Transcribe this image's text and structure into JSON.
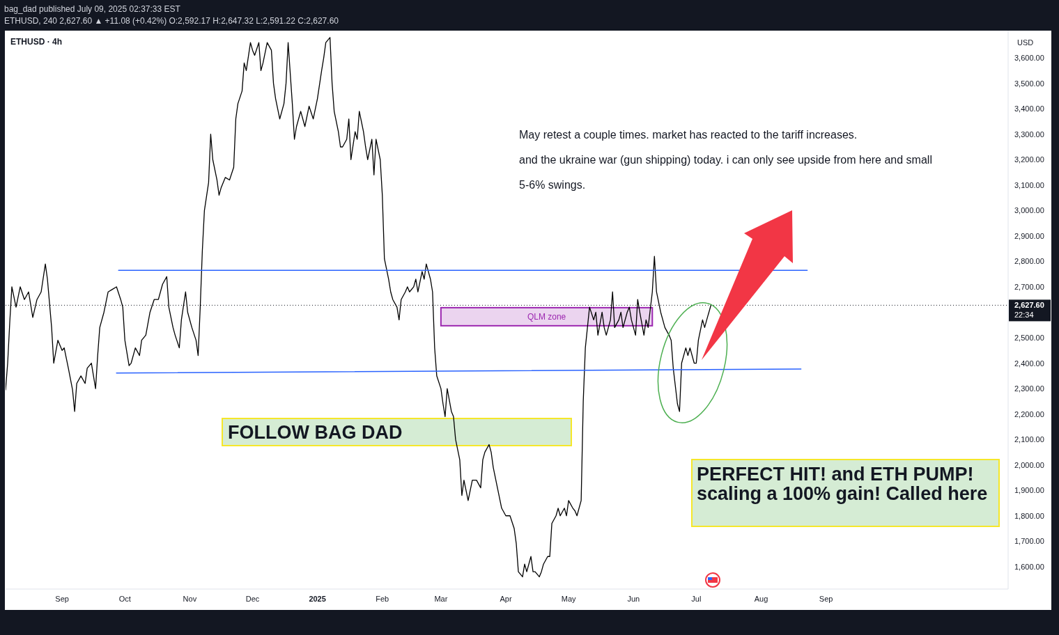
{
  "chart_data": {
    "type": "line",
    "title": "ETHUSD · 4h",
    "ylabel": "USD",
    "annotations": [
      "bag_dad published July 09, 2025 02:37:33 EST",
      "ETHUSD, 240  2,627.60 ▲ +11.08 (+0.42%)  O:2,592.17  H:2,647.32  L:2,591.22  C:2,627.60",
      "May retest a couple times. market has reacted to the tariff increases.",
      "and the ukraine war (gun shipping) today. i can only see upside from here and small",
      "5-6% swings.",
      "FOLLOW BAG DAD",
      "PERFECT HIT! and ETH PUMP!",
      "scaling a 100% gain! Called here",
      "22:34"
    ],
    "xlim": [
      "2024-08-05",
      "2025-11-27"
    ],
    "xticks": [
      {
        "value": "2024-09-01",
        "label": "Sep"
      },
      {
        "value": "2024-10-01",
        "label": "Oct"
      },
      {
        "value": "2024-11-01",
        "label": "Nov"
      },
      {
        "value": "2024-12-01",
        "label": "Dec"
      },
      {
        "value": "2025-01-01",
        "label": "2025"
      },
      {
        "value": "2025-02-01",
        "label": "Feb"
      },
      {
        "value": "2025-03-01",
        "label": "Mar"
      },
      {
        "value": "2025-04-01",
        "label": "Apr"
      },
      {
        "value": "2025-05-01",
        "label": "May"
      },
      {
        "value": "2025-06-01",
        "label": "Jun"
      },
      {
        "value": "2025-07-01",
        "label": "Jul"
      },
      {
        "value": "2025-08-01",
        "label": "Aug"
      },
      {
        "value": "2025-09-01",
        "label": "Sep"
      }
    ],
    "ylim": [
      1512,
      3707
    ],
    "yticks": [
      {
        "value": 1600,
        "label": "1,600.00"
      },
      {
        "value": 1700,
        "label": "1,700.00"
      },
      {
        "value": 1800,
        "label": "1,800.00"
      },
      {
        "value": 1900,
        "label": "1,900.00"
      },
      {
        "value": 2000,
        "label": "2,000.00"
      },
      {
        "value": 2100,
        "label": "2,100.00"
      },
      {
        "value": 2200,
        "label": "2,200.00"
      },
      {
        "value": 2300,
        "label": "2,300.00"
      },
      {
        "value": 2400,
        "label": "2,400.00"
      },
      {
        "value": 2500,
        "label": "2,500.00"
      },
      {
        "value": 2700,
        "label": "2,700.00"
      },
      {
        "value": 2800,
        "label": "2,800.00"
      },
      {
        "value": 2900,
        "label": "2,900.00"
      },
      {
        "value": 3000,
        "label": "3,000.00"
      },
      {
        "value": 3100,
        "label": "3,100.00"
      },
      {
        "value": 3200,
        "label": "3,200.00"
      },
      {
        "value": 3300,
        "label": "3,300.00"
      },
      {
        "value": 3400,
        "label": "3,400.00"
      },
      {
        "value": 3500,
        "label": "3,500.00"
      },
      {
        "value": 3600,
        "label": "3,600.00"
      }
    ],
    "grid": false,
    "marker": "none",
    "line_style": "solid",
    "ref_lines": [
      {
        "axis": "y",
        "value": 2627.6,
        "label": "2,627.60",
        "color": "#131722",
        "line_style": "dotted"
      }
    ],
    "bands": [
      {
        "axis": "y",
        "from": 2547,
        "to": 2618,
        "label": "QLM zone",
        "color": "#9c27b0"
      }
    ],
    "series": [
      {
        "color": "#000000",
        "x": [
          "2024-08-05",
          "2024-08-06",
          "2024-08-07",
          "2024-08-08",
          "2024-08-10",
          "2024-08-12",
          "2024-08-14",
          "2024-08-16",
          "2024-08-18",
          "2024-08-20",
          "2024-08-22",
          "2024-08-24",
          "2024-08-25",
          "2024-08-27",
          "2024-08-28",
          "2024-08-30",
          "2024-09-01",
          "2024-09-02",
          "2024-09-04",
          "2024-09-06",
          "2024-09-07",
          "2024-09-08",
          "2024-09-10",
          "2024-09-12",
          "2024-09-13",
          "2024-09-15",
          "2024-09-17",
          "2024-09-18",
          "2024-09-19",
          "2024-09-21",
          "2024-09-23",
          "2024-09-25",
          "2024-09-27",
          "2024-09-29",
          "2024-09-30",
          "2024-10-01",
          "2024-10-03",
          "2024-10-04",
          "2024-10-06",
          "2024-10-08",
          "2024-10-09",
          "2024-10-11",
          "2024-10-13",
          "2024-10-15",
          "2024-10-17",
          "2024-10-18",
          "2024-10-19",
          "2024-10-21",
          "2024-10-22",
          "2024-10-24",
          "2024-10-25",
          "2024-10-27",
          "2024-10-28",
          "2024-10-30",
          "2024-10-31",
          "2024-11-02",
          "2024-11-04",
          "2024-11-05",
          "2024-11-06",
          "2024-11-07",
          "2024-11-08",
          "2024-11-10",
          "2024-11-11",
          "2024-11-12",
          "2024-11-14",
          "2024-11-15",
          "2024-11-16",
          "2024-11-18",
          "2024-11-20",
          "2024-11-22",
          "2024-11-23",
          "2024-11-24",
          "2024-11-26",
          "2024-11-27",
          "2024-11-28",
          "2024-11-30",
          "2024-12-01",
          "2024-12-02",
          "2024-12-04",
          "2024-12-05",
          "2024-12-06",
          "2024-12-08",
          "2024-12-10",
          "2024-12-11",
          "2024-12-12",
          "2024-12-14",
          "2024-12-16",
          "2024-12-17",
          "2024-12-18",
          "2024-12-20",
          "2024-12-21",
          "2024-12-22",
          "2024-12-24",
          "2024-12-25",
          "2024-12-26",
          "2024-12-28",
          "2024-12-30",
          "2025-01-01",
          "2025-01-03",
          "2025-01-04",
          "2025-01-05",
          "2025-01-07",
          "2025-01-08",
          "2025-01-09",
          "2025-01-11",
          "2025-01-12",
          "2025-01-13",
          "2025-01-15",
          "2025-01-16",
          "2025-01-17",
          "2025-01-19",
          "2025-01-20",
          "2025-01-21",
          "2025-01-23",
          "2025-01-24",
          "2025-01-25",
          "2025-01-27",
          "2025-01-28",
          "2025-01-29",
          "2025-01-31",
          "2025-02-01",
          "2025-02-02",
          "2025-02-04",
          "2025-02-05",
          "2025-02-06",
          "2025-02-08",
          "2025-02-09",
          "2025-02-10",
          "2025-02-12",
          "2025-02-13",
          "2025-02-14",
          "2025-02-16",
          "2025-02-17",
          "2025-02-18",
          "2025-02-20",
          "2025-02-21",
          "2025-02-22",
          "2025-02-24",
          "2025-02-25",
          "2025-02-26",
          "2025-02-27",
          "2025-03-01",
          "2025-03-02",
          "2025-03-03",
          "2025-03-04",
          "2025-03-06",
          "2025-03-07",
          "2025-03-08",
          "2025-03-10",
          "2025-03-11",
          "2025-03-12",
          "2025-03-14",
          "2025-03-16",
          "2025-03-18",
          "2025-03-20",
          "2025-03-21",
          "2025-03-22",
          "2025-03-24",
          "2025-03-25",
          "2025-03-26",
          "2025-03-28",
          "2025-03-30",
          "2025-04-01",
          "2025-04-03",
          "2025-04-05",
          "2025-04-06",
          "2025-04-07",
          "2025-04-09",
          "2025-04-10",
          "2025-04-11",
          "2025-04-13",
          "2025-04-14",
          "2025-04-15",
          "2025-04-17",
          "2025-04-18",
          "2025-04-19",
          "2025-04-21",
          "2025-04-22",
          "2025-04-23",
          "2025-04-25",
          "2025-04-26",
          "2025-04-27",
          "2025-04-29",
          "2025-04-30",
          "2025-05-01",
          "2025-05-03",
          "2025-05-04",
          "2025-05-05",
          "2025-05-07",
          "2025-05-08",
          "2025-05-09",
          "2025-05-10",
          "2025-05-11",
          "2025-05-13",
          "2025-05-14",
          "2025-05-15",
          "2025-05-17",
          "2025-05-18",
          "2025-05-19",
          "2025-05-21",
          "2025-05-22",
          "2025-05-23",
          "2025-05-25",
          "2025-05-26",
          "2025-05-27",
          "2025-05-29",
          "2025-05-30",
          "2025-05-31",
          "2025-06-02",
          "2025-06-03",
          "2025-06-04",
          "2025-06-06",
          "2025-06-07",
          "2025-06-08",
          "2025-06-10",
          "2025-06-11",
          "2025-06-12",
          "2025-06-14",
          "2025-06-15",
          "2025-06-16",
          "2025-06-18",
          "2025-06-19",
          "2025-06-20",
          "2025-06-22",
          "2025-06-23",
          "2025-06-24",
          "2025-06-26",
          "2025-06-27",
          "2025-06-28",
          "2025-06-30",
          "2025-07-01",
          "2025-07-02",
          "2025-07-04",
          "2025-07-05",
          "2025-07-06",
          "2025-07-08"
        ],
        "values": [
          2295,
          2400,
          2560,
          2700,
          2620,
          2700,
          2650,
          2680,
          2580,
          2650,
          2680,
          2790,
          2730,
          2540,
          2400,
          2490,
          2450,
          2460,
          2380,
          2295,
          2210,
          2320,
          2350,
          2320,
          2380,
          2400,
          2300,
          2430,
          2540,
          2600,
          2680,
          2690,
          2700,
          2650,
          2620,
          2490,
          2390,
          2400,
          2460,
          2430,
          2490,
          2510,
          2600,
          2650,
          2650,
          2680,
          2710,
          2740,
          2620,
          2540,
          2510,
          2460,
          2570,
          2680,
          2600,
          2540,
          2490,
          2430,
          2620,
          2840,
          3000,
          3110,
          3300,
          3200,
          3120,
          3060,
          3090,
          3130,
          3120,
          3170,
          3360,
          3420,
          3470,
          3580,
          3550,
          3660,
          3630,
          3610,
          3660,
          3550,
          3580,
          3660,
          3630,
          3500,
          3440,
          3360,
          3420,
          3500,
          3660,
          3420,
          3280,
          3330,
          3390,
          3360,
          3330,
          3410,
          3360,
          3440,
          3550,
          3600,
          3660,
          3680,
          3500,
          3390,
          3310,
          3250,
          3250,
          3280,
          3360,
          3200,
          3310,
          3280,
          3390,
          3310,
          3250,
          3200,
          3280,
          3140,
          3280,
          3200,
          3060,
          2810,
          2730,
          2680,
          2650,
          2620,
          2570,
          2650,
          2680,
          2700,
          2680,
          2700,
          2730,
          2680,
          2760,
          2730,
          2790,
          2730,
          2680,
          2460,
          2350,
          2300,
          2240,
          2190,
          2300,
          2210,
          2190,
          2100,
          2020,
          1880,
          1940,
          1860,
          1940,
          1940,
          1910,
          2020,
          2050,
          2080,
          2050,
          1990,
          1910,
          1830,
          1800,
          1800,
          1750,
          1690,
          1580,
          1560,
          1610,
          1580,
          1640,
          1580,
          1580,
          1560,
          1580,
          1610,
          1640,
          1640,
          1770,
          1800,
          1830,
          1800,
          1830,
          1800,
          1860,
          1830,
          1820,
          1800,
          1860,
          2250,
          2460,
          2540,
          2620,
          2570,
          2600,
          2510,
          2600,
          2540,
          2510,
          2570,
          2680,
          2540,
          2570,
          2600,
          2540,
          2600,
          2620,
          2570,
          2510,
          2650,
          2600,
          2510,
          2570,
          2540,
          2680,
          2820,
          2680,
          2600,
          2570,
          2540,
          2510,
          2490,
          2380,
          2240,
          2210,
          2400,
          2460,
          2430,
          2460,
          2400,
          2400,
          2490,
          2570,
          2540,
          2570,
          2628
        ]
      },
      {
        "color": "#2962ff",
        "x": [
          "2024-09-28",
          "2025-08-23"
        ],
        "values": [
          2765,
          2765
        ]
      },
      {
        "color": "#2962ff",
        "x": [
          "2024-09-27",
          "2025-08-20"
        ],
        "values": [
          2361,
          2377
        ]
      }
    ]
  }
}
